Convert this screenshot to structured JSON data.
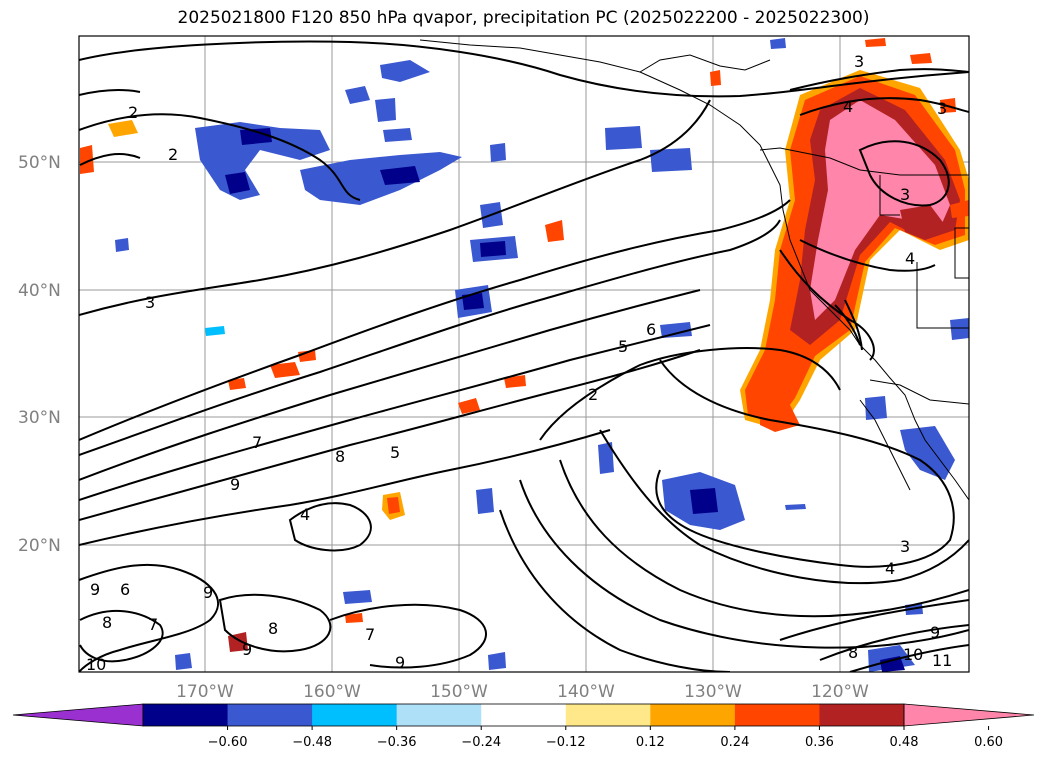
{
  "title": "2025021800 F120 850 hPa qvapor, precipitation PC (2025022200 - 2025022300)",
  "lat_labels": [
    "50°N",
    "40°N",
    "30°N",
    "20°N"
  ],
  "lon_labels": [
    "170°W",
    "160°W",
    "150°W",
    "140°W",
    "130°W",
    "120°W"
  ],
  "colorbar": {
    "ticks": [
      "−0.60",
      "−0.48",
      "−0.36",
      "−0.24",
      "−0.12",
      "0.12",
      "0.24",
      "0.36",
      "0.48",
      "0.60"
    ],
    "colors": [
      "#9a30d0",
      "#00008b",
      "#3a58d0",
      "#00bfff",
      "#aee0f8",
      "#ffffff",
      "#ffe88a",
      "#ffa500",
      "#ff4500",
      "#b22222",
      "#ff85aa"
    ]
  },
  "contour_labels": [
    "2",
    "2",
    "3",
    "3",
    "4",
    "3",
    "3",
    "4",
    "6",
    "5",
    "2",
    "7",
    "8",
    "5",
    "9",
    "4",
    "3",
    "4",
    "9",
    "6",
    "9",
    "8",
    "7",
    "8",
    "9",
    "7",
    "10",
    "9",
    "8",
    "10",
    "11",
    "9"
  ]
}
